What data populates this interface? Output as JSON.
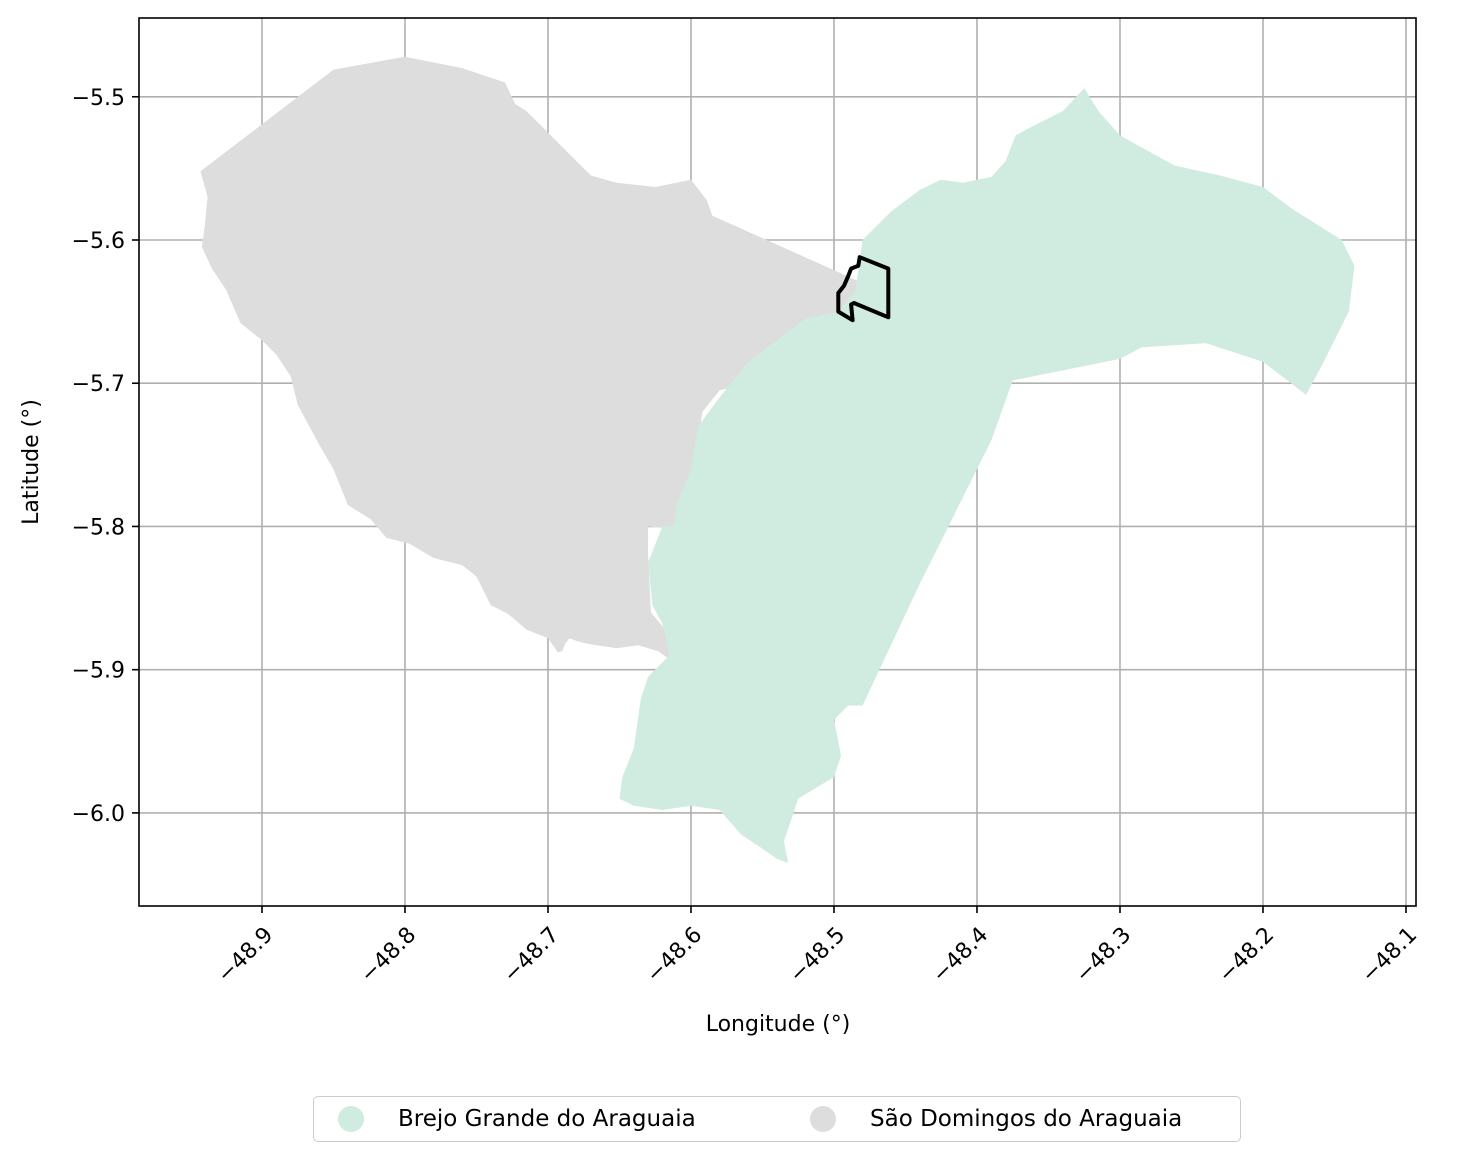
{
  "chart_data": {
    "type": "map",
    "xlabel": "Longitude (°)",
    "ylabel": "Latitude (°)",
    "xlim": [
      -48.986,
      -48.093
    ],
    "ylim": [
      -6.065,
      -5.445
    ],
    "xticks": [
      -48.9,
      -48.8,
      -48.7,
      -48.6,
      -48.5,
      -48.4,
      -48.3,
      -48.2,
      -48.1
    ],
    "xtick_labels": [
      "−48.9",
      "−48.8",
      "−48.7",
      "−48.6",
      "−48.5",
      "−48.4",
      "−48.3",
      "−48.2",
      "−48.1"
    ],
    "yticks": [
      -5.5,
      -5.6,
      -5.7,
      -5.8,
      -5.9,
      -6.0
    ],
    "ytick_labels": [
      "−5.5",
      "−5.6",
      "−5.7",
      "−5.8",
      "−5.9",
      "−6.0"
    ],
    "grid": true,
    "legend_position": "bottom-center",
    "regions": [
      {
        "name": "São Domingos do Araguaia",
        "color": "#dddddd",
        "polygon": [
          [
            -48.943,
            -5.552
          ],
          [
            -48.85,
            -5.481
          ],
          [
            -48.8,
            -5.472
          ],
          [
            -48.76,
            -5.48
          ],
          [
            -48.73,
            -5.49
          ],
          [
            -48.723,
            -5.505
          ],
          [
            -48.715,
            -5.51
          ],
          [
            -48.695,
            -5.53
          ],
          [
            -48.67,
            -5.555
          ],
          [
            -48.652,
            -5.56
          ],
          [
            -48.625,
            -5.563
          ],
          [
            -48.6,
            -5.558
          ],
          [
            -48.589,
            -5.572
          ],
          [
            -48.585,
            -5.583
          ],
          [
            -48.48,
            -5.63
          ],
          [
            -48.48,
            -5.652
          ],
          [
            -48.498,
            -5.66
          ],
          [
            -48.52,
            -5.666
          ],
          [
            -48.54,
            -5.685
          ],
          [
            -48.56,
            -5.7
          ],
          [
            -48.58,
            -5.705
          ],
          [
            -48.592,
            -5.72
          ],
          [
            -48.595,
            -5.74
          ],
          [
            -48.6,
            -5.76
          ],
          [
            -48.603,
            -5.79
          ],
          [
            -48.61,
            -5.802
          ],
          [
            -48.63,
            -5.8
          ],
          [
            -48.63,
            -5.82
          ],
          [
            -48.628,
            -5.86
          ],
          [
            -48.618,
            -5.872
          ],
          [
            -48.612,
            -5.895
          ],
          [
            -48.623,
            -5.887
          ],
          [
            -48.637,
            -5.883
          ],
          [
            -48.652,
            -5.885
          ],
          [
            -48.672,
            -5.882
          ],
          [
            -48.68,
            -5.88
          ],
          [
            -48.685,
            -5.878
          ],
          [
            -48.688,
            -5.882
          ],
          [
            -48.69,
            -5.887
          ],
          [
            -48.693,
            -5.888
          ],
          [
            -48.7,
            -5.878
          ],
          [
            -48.715,
            -5.872
          ],
          [
            -48.728,
            -5.861
          ],
          [
            -48.74,
            -5.855
          ],
          [
            -48.75,
            -5.835
          ],
          [
            -48.76,
            -5.827
          ],
          [
            -48.78,
            -5.822
          ],
          [
            -48.797,
            -5.812
          ],
          [
            -48.813,
            -5.808
          ],
          [
            -48.824,
            -5.795
          ],
          [
            -48.84,
            -5.785
          ],
          [
            -48.85,
            -5.76
          ],
          [
            -48.86,
            -5.743
          ],
          [
            -48.875,
            -5.715
          ],
          [
            -48.88,
            -5.695
          ],
          [
            -48.89,
            -5.68
          ],
          [
            -48.9,
            -5.67
          ],
          [
            -48.915,
            -5.658
          ],
          [
            -48.925,
            -5.635
          ],
          [
            -48.935,
            -5.62
          ],
          [
            -48.942,
            -5.605
          ],
          [
            -48.94,
            -5.59
          ],
          [
            -48.938,
            -5.57
          ],
          [
            -48.943,
            -5.552
          ]
        ]
      },
      {
        "name": "Brejo Grande do Araguaia",
        "color": "#d0ebdf",
        "polygon": [
          [
            -48.325,
            -5.494
          ],
          [
            -48.34,
            -5.51
          ],
          [
            -48.36,
            -5.52
          ],
          [
            -48.373,
            -5.527
          ],
          [
            -48.38,
            -5.545
          ],
          [
            -48.39,
            -5.556
          ],
          [
            -48.41,
            -5.56
          ],
          [
            -48.425,
            -5.558
          ],
          [
            -48.44,
            -5.565
          ],
          [
            -48.46,
            -5.58
          ],
          [
            -48.48,
            -5.6
          ],
          [
            -48.485,
            -5.635
          ],
          [
            -48.497,
            -5.65
          ],
          [
            -48.52,
            -5.655
          ],
          [
            -48.56,
            -5.685
          ],
          [
            -48.58,
            -5.71
          ],
          [
            -48.595,
            -5.73
          ],
          [
            -48.6,
            -5.76
          ],
          [
            -48.61,
            -5.785
          ],
          [
            -48.612,
            -5.8
          ],
          [
            -48.62,
            -5.8
          ],
          [
            -48.63,
            -5.825
          ],
          [
            -48.627,
            -5.855
          ],
          [
            -48.62,
            -5.868
          ],
          [
            -48.615,
            -5.89
          ],
          [
            -48.63,
            -5.905
          ],
          [
            -48.635,
            -5.92
          ],
          [
            -48.64,
            -5.955
          ],
          [
            -48.648,
            -5.975
          ],
          [
            -48.65,
            -5.99
          ],
          [
            -48.64,
            -5.995
          ],
          [
            -48.62,
            -5.998
          ],
          [
            -48.6,
            -5.995
          ],
          [
            -48.58,
            -5.998
          ],
          [
            -48.565,
            -6.015
          ],
          [
            -48.55,
            -6.025
          ],
          [
            -48.54,
            -6.032
          ],
          [
            -48.532,
            -6.035
          ],
          [
            -48.535,
            -6.02
          ],
          [
            -48.53,
            -6.005
          ],
          [
            -48.525,
            -5.99
          ],
          [
            -48.5,
            -5.975
          ],
          [
            -48.495,
            -5.96
          ],
          [
            -48.5,
            -5.935
          ],
          [
            -48.49,
            -5.925
          ],
          [
            -48.48,
            -5.925
          ],
          [
            -48.44,
            -5.84
          ],
          [
            -48.39,
            -5.74
          ],
          [
            -48.375,
            -5.698
          ],
          [
            -48.3,
            -5.683
          ],
          [
            -48.285,
            -5.675
          ],
          [
            -48.24,
            -5.672
          ],
          [
            -48.2,
            -5.685
          ],
          [
            -48.17,
            -5.708
          ],
          [
            -48.16,
            -5.69
          ],
          [
            -48.14,
            -5.65
          ],
          [
            -48.136,
            -5.618
          ],
          [
            -48.145,
            -5.6
          ],
          [
            -48.18,
            -5.578
          ],
          [
            -48.2,
            -5.563
          ],
          [
            -48.23,
            -5.555
          ],
          [
            -48.262,
            -5.548
          ],
          [
            -48.3,
            -5.527
          ],
          [
            -48.315,
            -5.51
          ],
          [
            -48.325,
            -5.494
          ]
        ]
      }
    ],
    "highlight_polygon": {
      "stroke": "#000000",
      "polygon": [
        [
          -48.482,
          -5.612
        ],
        [
          -48.462,
          -5.62
        ],
        [
          -48.462,
          -5.654
        ],
        [
          -48.486,
          -5.644
        ],
        [
          -48.488,
          -5.645
        ],
        [
          -48.487,
          -5.656
        ],
        [
          -48.497,
          -5.65
        ],
        [
          -48.497,
          -5.637
        ],
        [
          -48.493,
          -5.632
        ],
        [
          -48.49,
          -5.625
        ],
        [
          -48.488,
          -5.62
        ],
        [
          -48.483,
          -5.618
        ],
        [
          -48.482,
          -5.612
        ]
      ]
    }
  },
  "legend": {
    "items": [
      {
        "label": "Brejo Grande do Araguaia",
        "color": "#d0ebdf"
      },
      {
        "label": "São Domingos do Araguaia",
        "color": "#dddddd"
      }
    ]
  }
}
